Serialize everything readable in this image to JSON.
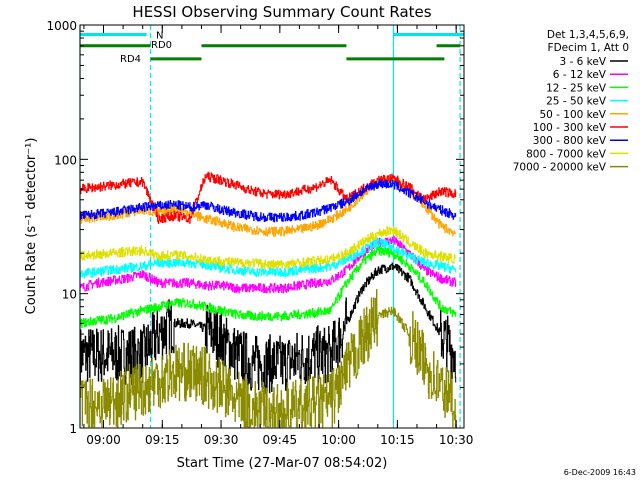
{
  "chart_data": {
    "type": "line",
    "title": "HESSI Observing Summary Count Rates",
    "xlabel": "Start Time (27-Mar-07 08:54:02)",
    "ylabel": "Count Rate (s⁻¹ detector⁻¹)",
    "yscale": "log",
    "ylim": [
      1,
      1000
    ],
    "xlim": [
      "08:54",
      "10:32"
    ],
    "x_ticks": [
      "09:00",
      "09:15",
      "09:30",
      "09:45",
      "10:00",
      "10:15",
      "10:30"
    ],
    "y_ticks": [
      "1",
      "10",
      "100",
      "1000"
    ],
    "legend_header": [
      "Det 1,3,4,5,6,9,",
      "FDecim 1, Att 0"
    ],
    "footer_date": "6-Dec-2009 16:43",
    "time_bars": [
      {
        "label": "N",
        "color": "#00e5ee",
        "level": 850,
        "intervals": [
          [
            "08:54",
            "09:11"
          ],
          [
            "10:14",
            "10:32"
          ]
        ]
      },
      {
        "label": "RD0",
        "color": "#007f00",
        "level": 700,
        "intervals": [
          [
            "08:54",
            "09:12"
          ],
          [
            "09:25",
            "10:02"
          ],
          [
            "10:25",
            "10:31"
          ]
        ]
      },
      {
        "label": "RD4",
        "color": "#007f00",
        "level": 560,
        "intervals": [
          [
            "09:12",
            "09:25"
          ],
          [
            "10:02",
            "10:27"
          ]
        ]
      }
    ],
    "vertical_markers": [
      {
        "time": "08:54",
        "style": "solid",
        "color": "#00e5ee"
      },
      {
        "time": "09:12",
        "style": "dashed",
        "color": "#00e5ee"
      },
      {
        "time": "10:14",
        "style": "solid",
        "color": "#00e5ee"
      },
      {
        "time": "10:31",
        "style": "dashed",
        "color": "#00e5ee"
      }
    ],
    "x": [
      "08:54",
      "08:58",
      "09:02",
      "09:06",
      "09:10",
      "09:14",
      "09:18",
      "09:22",
      "09:26",
      "09:30",
      "09:34",
      "09:38",
      "09:42",
      "09:46",
      "09:50",
      "09:54",
      "09:58",
      "10:02",
      "10:06",
      "10:10",
      "10:14",
      "10:18",
      "10:22",
      "10:26",
      "10:30"
    ],
    "series": [
      {
        "name": "3 - 6 keV",
        "color": "#000000",
        "values": [
          3.5,
          3.5,
          3.5,
          3.5,
          3.5,
          5,
          6,
          6,
          5.5,
          4.5,
          3.5,
          3,
          3,
          3,
          3.3,
          3.5,
          3.5,
          6,
          11,
          15,
          16,
          13,
          8,
          5,
          3.5
        ]
      },
      {
        "name": "6 - 12 keV",
        "color": "#ff00ff",
        "values": [
          11,
          12,
          12.5,
          13,
          14,
          12,
          12,
          12,
          11.5,
          11.5,
          11,
          11,
          11,
          11,
          11.5,
          12,
          12.5,
          15,
          20,
          24,
          25,
          20,
          15,
          13,
          12
        ]
      },
      {
        "name": "12 - 25 keV",
        "color": "#00ff00",
        "values": [
          6,
          6.3,
          6.5,
          7,
          7.5,
          8,
          8.5,
          8.5,
          8,
          7.5,
          7,
          6.8,
          6.8,
          6.8,
          7,
          7.2,
          7.5,
          12,
          17,
          21,
          20,
          16,
          12,
          8,
          7
        ]
      },
      {
        "name": "25 - 50 keV",
        "color": "#00ffff",
        "values": [
          14,
          14.5,
          15,
          15.5,
          16,
          17,
          17,
          17,
          16.5,
          15.5,
          15,
          14.5,
          14.5,
          14.5,
          15,
          15.5,
          16,
          18,
          21,
          24,
          22,
          19,
          17,
          16,
          15
        ]
      },
      {
        "name": "50 - 100 keV",
        "color": "#ffa500",
        "values": [
          36,
          37,
          38,
          40,
          42,
          40,
          43,
          40,
          36,
          34,
          31,
          30,
          29,
          29,
          30,
          32,
          36,
          42,
          55,
          68,
          70,
          58,
          45,
          32,
          28
        ]
      },
      {
        "name": "100 - 300 keV",
        "color": "#ff0000",
        "values": [
          60,
          62,
          64,
          66,
          68,
          36,
          38,
          36,
          75,
          70,
          64,
          58,
          55,
          55,
          58,
          62,
          70,
          50,
          60,
          70,
          72,
          62,
          50,
          58,
          55
        ]
      },
      {
        "name": "300 - 800 keV",
        "color": "#0000ff",
        "values": [
          38,
          39,
          40,
          42,
          44,
          45,
          46,
          44,
          46,
          42,
          40,
          38,
          37,
          37,
          38,
          40,
          44,
          48,
          58,
          66,
          65,
          56,
          48,
          42,
          38
        ]
      },
      {
        "name": "800 - 7000 keV",
        "color": "#e0e000",
        "values": [
          19,
          19.5,
          20,
          20.5,
          21,
          19,
          19.5,
          19,
          18,
          17.5,
          17,
          17,
          16.5,
          16.5,
          17,
          17.5,
          18,
          20,
          24,
          28,
          30,
          24,
          20,
          19,
          18
        ]
      },
      {
        "name": "7000 - 20000 keV",
        "color": "#8b8b00",
        "values": [
          1.5,
          1.5,
          1.6,
          1.8,
          2,
          2.3,
          2.6,
          2.6,
          2.4,
          2,
          1.6,
          1.4,
          1.3,
          1.3,
          1.4,
          1.5,
          1.6,
          2.6,
          4.5,
          6.8,
          7.5,
          5,
          3,
          2,
          1.5
        ]
      }
    ]
  }
}
